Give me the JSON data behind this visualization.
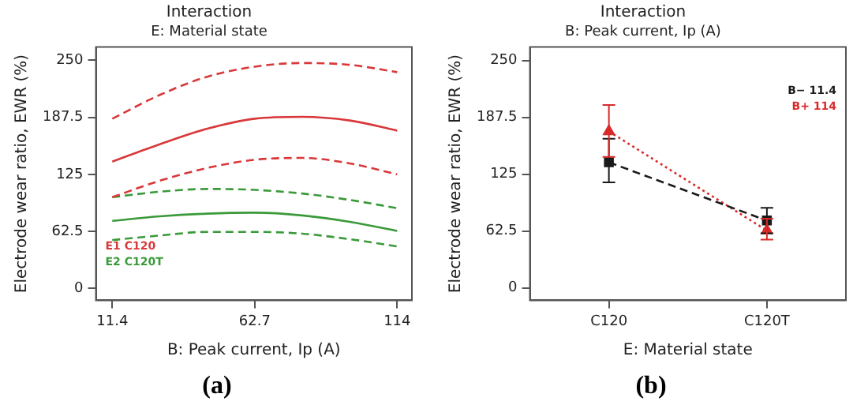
{
  "chart_data": [
    {
      "type": "line",
      "title": "Interaction",
      "subtitle": "E: Material state",
      "xlabel": "B: Peak current, Ip (A)",
      "ylabel": "Electrode wear ratio, EWR (%)",
      "xlim": [
        5.5,
        119.3
      ],
      "xticks": [
        11.4,
        62.7,
        114
      ],
      "ylim": [
        -13,
        264.5
      ],
      "yticks": [
        0,
        62.5,
        125,
        187.5,
        250
      ],
      "legend": "bottom left",
      "marker": "none",
      "annotations": [
        "(a)"
      ],
      "series": [
        {
          "name": "E1 C120",
          "color": "#d9383a",
          "line_style": "solid",
          "x": [
            11.4,
            28.5,
            45.6,
            62.7,
            79.8,
            96.9,
            114
          ],
          "values": [
            139,
            158,
            175,
            186,
            188,
            184,
            173
          ]
        },
        {
          "color": "#d9383a",
          "line_style": "dashed",
          "x": [
            11.4,
            28.5,
            45.6,
            62.7,
            79.8,
            96.9,
            114
          ],
          "values": [
            186,
            212,
            232,
            243,
            247,
            245,
            237
          ]
        },
        {
          "color": "#d9383a",
          "line_style": "dashed",
          "x": [
            11.4,
            28.5,
            45.6,
            62.7,
            79.8,
            96.9,
            114
          ],
          "values": [
            100,
            118,
            132,
            141,
            143,
            137,
            125
          ]
        },
        {
          "name": "E2 C120T",
          "color": "#3a9a3a",
          "line_style": "solid",
          "x": [
            11.4,
            28.5,
            45.6,
            62.7,
            79.8,
            96.9,
            114
          ],
          "values": [
            74,
            79,
            82,
            83,
            80,
            73,
            63
          ]
        },
        {
          "color": "#3a9a3a",
          "line_style": "dashed",
          "x": [
            11.4,
            28.5,
            45.6,
            62.7,
            79.8,
            96.9,
            114
          ],
          "values": [
            100,
            106,
            109,
            108,
            104,
            97,
            88
          ]
        },
        {
          "color": "#3a9a3a",
          "line_style": "dashed",
          "x": [
            11.4,
            28.5,
            45.6,
            62.7,
            79.8,
            96.9,
            114
          ],
          "values": [
            53,
            58,
            62,
            62,
            60,
            54,
            46
          ]
        }
      ]
    },
    {
      "type": "line",
      "title": "Interaction",
      "subtitle": "B: Peak current, Ip (A)",
      "xlabel": "E: Material state",
      "ylabel": "Electrode wear ratio, EWR (%)",
      "categories": [
        "C120",
        "C120T"
      ],
      "ylim": [
        -13.7,
        264.7
      ],
      "yticks": [
        0,
        62.5,
        125,
        187.5,
        250
      ],
      "legend": "top right",
      "annotations": [
        "(b)"
      ],
      "series": [
        {
          "name": "B− 11.4",
          "color": "#1a1a1a",
          "line_style": "dashed",
          "marker": "square",
          "values": [
            138,
            74
          ],
          "errors": [
            [
              116,
              164
            ],
            [
              60,
              88
            ]
          ]
        },
        {
          "name": "B+ 114",
          "color": "#d92a2a",
          "line_style": "dotted",
          "marker": "triangle",
          "values": [
            172,
            63
          ],
          "errors": [
            [
              144,
              201
            ],
            [
              53,
              76
            ]
          ]
        }
      ]
    }
  ]
}
